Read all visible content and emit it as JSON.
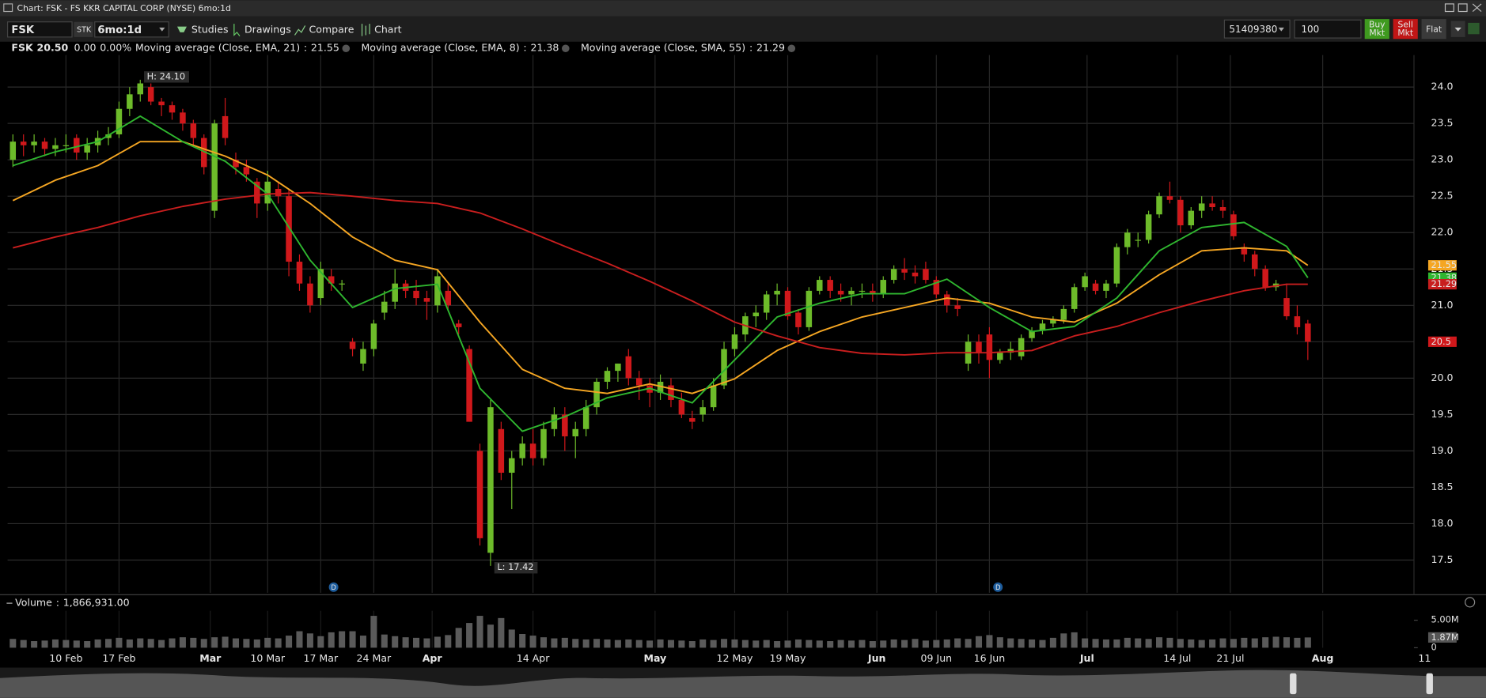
{
  "window": {
    "title": "Chart: FSK - FS KKR CAPITAL CORP (NYSE) 6mo:1d"
  },
  "toolbar": {
    "symbol": "FSK",
    "sec_type": "STK",
    "period": "6mo:1d",
    "studies": "Studies",
    "drawings": "Drawings",
    "compare": "Compare",
    "chart": "Chart",
    "account": "51409380",
    "quantity": "100",
    "buy": [
      "Buy",
      "Mkt"
    ],
    "sell": [
      "Sell",
      "Mkt"
    ],
    "flat": "Flat"
  },
  "quote": {
    "symbol": "FSK",
    "last": "20.50",
    "change": "0.00",
    "change_pct": "0.00%"
  },
  "chart_data": {
    "type": "candlestick",
    "up_color": "#6dbb2a",
    "down_color": "#d0181b",
    "ohlc": [
      [
        23.0,
        23.35,
        22.9,
        23.25
      ],
      [
        23.25,
        23.35,
        23.05,
        23.2
      ],
      [
        23.2,
        23.35,
        23.1,
        23.25
      ],
      [
        23.25,
        23.3,
        23.05,
        23.15
      ],
      [
        23.15,
        23.3,
        23.05,
        23.2
      ],
      [
        23.2,
        23.35,
        23.1,
        23.2
      ],
      [
        23.3,
        23.35,
        23.0,
        23.1
      ],
      [
        23.1,
        23.3,
        23.0,
        23.2
      ],
      [
        23.2,
        23.4,
        23.1,
        23.3
      ],
      [
        23.3,
        23.45,
        23.2,
        23.35
      ],
      [
        23.35,
        23.8,
        23.3,
        23.7
      ],
      [
        23.7,
        24.0,
        23.6,
        23.9
      ],
      [
        23.9,
        24.1,
        23.8,
        24.05
      ],
      [
        24.0,
        24.05,
        23.75,
        23.8
      ],
      [
        23.8,
        23.85,
        23.6,
        23.75
      ],
      [
        23.75,
        23.8,
        23.55,
        23.65
      ],
      [
        23.65,
        23.7,
        23.4,
        23.5
      ],
      [
        23.5,
        23.55,
        23.2,
        23.3
      ],
      [
        23.3,
        23.35,
        22.8,
        22.9
      ],
      [
        22.3,
        23.55,
        22.2,
        23.5
      ],
      [
        23.6,
        23.85,
        23.2,
        23.3
      ],
      [
        23.0,
        23.1,
        22.8,
        22.9
      ],
      [
        22.9,
        23.0,
        22.7,
        22.8
      ],
      [
        22.7,
        22.75,
        22.2,
        22.4
      ],
      [
        22.4,
        22.85,
        22.3,
        22.7
      ],
      [
        22.6,
        22.7,
        22.4,
        22.5
      ],
      [
        22.5,
        22.6,
        21.4,
        21.6
      ],
      [
        21.6,
        21.7,
        21.2,
        21.3
      ],
      [
        21.3,
        21.4,
        20.9,
        21.0
      ],
      [
        21.1,
        21.6,
        21.0,
        21.5
      ],
      [
        21.4,
        21.5,
        21.2,
        21.3
      ],
      [
        21.3,
        21.35,
        21.2,
        21.3
      ],
      [
        20.5,
        20.55,
        20.3,
        20.4
      ],
      [
        20.2,
        20.5,
        20.1,
        20.4
      ],
      [
        20.4,
        20.8,
        20.3,
        20.75
      ],
      [
        20.9,
        21.2,
        20.8,
        21.05
      ],
      [
        21.05,
        21.5,
        20.95,
        21.3
      ],
      [
        21.3,
        21.35,
        21.1,
        21.2
      ],
      [
        21.2,
        21.35,
        21.0,
        21.1
      ],
      [
        21.1,
        21.2,
        20.8,
        21.05
      ],
      [
        21.0,
        21.5,
        20.9,
        21.4
      ],
      [
        21.2,
        21.3,
        20.95,
        21.0
      ],
      [
        20.75,
        20.8,
        20.6,
        20.7
      ],
      [
        20.4,
        20.45,
        19.4,
        19.4
      ],
      [
        19.0,
        19.1,
        17.7,
        17.8
      ],
      [
        17.6,
        19.7,
        17.42,
        19.6
      ],
      [
        19.3,
        19.4,
        18.6,
        18.7
      ],
      [
        18.7,
        19.0,
        18.2,
        18.9
      ],
      [
        18.9,
        19.2,
        18.8,
        19.1
      ],
      [
        19.1,
        19.3,
        18.8,
        18.9
      ],
      [
        18.9,
        19.4,
        18.8,
        19.3
      ],
      [
        19.3,
        19.6,
        19.2,
        19.5
      ],
      [
        19.5,
        19.6,
        19.0,
        19.2
      ],
      [
        19.2,
        19.4,
        18.9,
        19.3
      ],
      [
        19.3,
        19.7,
        19.2,
        19.6
      ],
      [
        19.6,
        20.0,
        19.5,
        19.95
      ],
      [
        19.95,
        20.15,
        19.85,
        20.1
      ],
      [
        20.1,
        20.2,
        19.95,
        20.2
      ],
      [
        20.3,
        20.4,
        19.9,
        20.0
      ],
      [
        20.0,
        20.1,
        19.7,
        19.9
      ],
      [
        19.9,
        20.0,
        19.6,
        19.8
      ],
      [
        19.8,
        20.05,
        19.7,
        19.95
      ],
      [
        19.9,
        20.0,
        19.6,
        19.7
      ],
      [
        19.7,
        19.8,
        19.45,
        19.5
      ],
      [
        19.45,
        19.55,
        19.3,
        19.4
      ],
      [
        19.5,
        19.7,
        19.4,
        19.6
      ],
      [
        19.6,
        20.0,
        19.55,
        19.9
      ],
      [
        19.9,
        20.5,
        19.85,
        20.4
      ],
      [
        20.4,
        20.7,
        20.3,
        20.6
      ],
      [
        20.6,
        20.9,
        20.5,
        20.85
      ],
      [
        20.85,
        21.0,
        20.7,
        20.9
      ],
      [
        20.9,
        21.2,
        20.8,
        21.15
      ],
      [
        21.15,
        21.3,
        21.0,
        21.2
      ],
      [
        21.2,
        21.25,
        20.8,
        20.85
      ],
      [
        20.9,
        20.95,
        20.6,
        20.7
      ],
      [
        20.7,
        21.25,
        20.65,
        21.2
      ],
      [
        21.2,
        21.4,
        21.15,
        21.35
      ],
      [
        21.35,
        21.4,
        21.1,
        21.2
      ],
      [
        21.2,
        21.3,
        21.05,
        21.15
      ],
      [
        21.15,
        21.25,
        21.0,
        21.2
      ],
      [
        21.2,
        21.3,
        21.1,
        21.2
      ],
      [
        21.2,
        21.3,
        21.05,
        21.15
      ],
      [
        21.15,
        21.4,
        21.1,
        21.35
      ],
      [
        21.35,
        21.55,
        21.3,
        21.5
      ],
      [
        21.5,
        21.65,
        21.35,
        21.45
      ],
      [
        21.45,
        21.55,
        21.3,
        21.4
      ],
      [
        21.5,
        21.6,
        21.3,
        21.35
      ],
      [
        21.35,
        21.4,
        21.1,
        21.15
      ],
      [
        21.15,
        21.2,
        20.9,
        21.0
      ],
      [
        21.0,
        21.1,
        20.85,
        20.95
      ],
      [
        20.2,
        20.6,
        20.1,
        20.5
      ],
      [
        20.5,
        20.6,
        20.2,
        20.35
      ],
      [
        20.6,
        20.7,
        20.0,
        20.25
      ],
      [
        20.25,
        20.4,
        20.2,
        20.35
      ],
      [
        20.35,
        20.5,
        20.25,
        20.4
      ],
      [
        20.3,
        20.6,
        20.25,
        20.55
      ],
      [
        20.55,
        20.7,
        20.5,
        20.65
      ],
      [
        20.65,
        20.8,
        20.6,
        20.75
      ],
      [
        20.75,
        20.85,
        20.7,
        20.8
      ],
      [
        20.8,
        21.0,
        20.75,
        20.95
      ],
      [
        20.95,
        21.3,
        20.9,
        21.25
      ],
      [
        21.25,
        21.45,
        21.2,
        21.4
      ],
      [
        21.3,
        21.35,
        21.15,
        21.2
      ],
      [
        21.2,
        21.35,
        21.1,
        21.3
      ],
      [
        21.3,
        21.85,
        21.25,
        21.8
      ],
      [
        21.8,
        22.05,
        21.7,
        22.0
      ],
      [
        21.9,
        22.0,
        21.8,
        21.9
      ],
      [
        21.9,
        22.3,
        21.85,
        22.25
      ],
      [
        22.25,
        22.55,
        22.2,
        22.5
      ],
      [
        22.5,
        22.7,
        22.4,
        22.45
      ],
      [
        22.45,
        22.5,
        22.0,
        22.1
      ],
      [
        22.1,
        22.35,
        22.05,
        22.3
      ],
      [
        22.3,
        22.5,
        22.2,
        22.4
      ],
      [
        22.4,
        22.5,
        22.3,
        22.35
      ],
      [
        22.35,
        22.45,
        22.2,
        22.3
      ],
      [
        22.25,
        22.3,
        21.9,
        21.95
      ],
      [
        21.8,
        21.85,
        21.6,
        21.7
      ],
      [
        21.7,
        21.75,
        21.4,
        21.5
      ],
      [
        21.5,
        21.55,
        21.2,
        21.25
      ],
      [
        21.25,
        21.35,
        21.2,
        21.3
      ],
      [
        21.1,
        21.3,
        20.8,
        20.85
      ],
      [
        20.85,
        21.0,
        20.6,
        20.7
      ],
      [
        20.75,
        20.8,
        20.25,
        20.5
      ]
    ],
    "last_price": 20.5,
    "annotations": [
      "H: 24.10",
      "L: 17.42"
    ],
    "events": [
      "D",
      "D"
    ],
    "legend_separator": ":",
    "series": [
      {
        "name": "Moving average (Close, EMA, 21)",
        "color": "#f5a623",
        "axis_label": 21.55,
        "x": [
          0,
          4,
          8,
          12,
          16,
          20,
          24,
          28,
          32,
          36,
          40,
          44,
          48,
          52,
          56,
          60,
          64,
          68,
          72,
          76,
          80,
          84,
          88,
          92,
          96,
          100,
          104,
          108,
          112,
          116,
          120,
          122
        ],
        "values": [
          22.44,
          22.72,
          22.92,
          23.25,
          23.25,
          23.05,
          22.79,
          22.4,
          21.94,
          21.62,
          21.49,
          20.77,
          20.12,
          19.86,
          19.79,
          19.92,
          19.79,
          19.99,
          20.38,
          20.64,
          20.84,
          20.97,
          21.1,
          21.03,
          20.84,
          20.77,
          21.03,
          21.42,
          21.75,
          21.79,
          21.75,
          21.55
        ]
      },
      {
        "name": "Moving average (Close, EMA, 8)",
        "color": "#2fb62f",
        "axis_label": 21.38,
        "x": [
          0,
          4,
          8,
          12,
          16,
          20,
          24,
          28,
          32,
          36,
          40,
          44,
          48,
          52,
          56,
          60,
          64,
          68,
          72,
          76,
          80,
          84,
          88,
          92,
          96,
          100,
          104,
          108,
          112,
          116,
          120,
          122
        ],
        "values": [
          22.92,
          23.11,
          23.25,
          23.6,
          23.25,
          22.98,
          22.53,
          21.62,
          20.97,
          21.23,
          21.29,
          19.86,
          19.27,
          19.47,
          19.73,
          19.86,
          19.66,
          20.25,
          20.84,
          21.03,
          21.16,
          21.16,
          21.36,
          20.97,
          20.64,
          20.71,
          21.1,
          21.75,
          22.07,
          22.14,
          21.81,
          21.38
        ]
      },
      {
        "name": "Moving average (Close, SMA, 55)",
        "color": "#c81e1e",
        "axis_label": 21.29,
        "x": [
          0,
          4,
          8,
          12,
          16,
          20,
          24,
          28,
          32,
          36,
          40,
          44,
          48,
          52,
          56,
          60,
          64,
          68,
          72,
          76,
          80,
          84,
          88,
          92,
          96,
          100,
          104,
          108,
          112,
          116,
          120,
          122
        ],
        "values": [
          21.79,
          21.94,
          22.07,
          22.23,
          22.36,
          22.46,
          22.53,
          22.55,
          22.5,
          22.44,
          22.4,
          22.27,
          22.05,
          21.81,
          21.58,
          21.33,
          21.06,
          20.77,
          20.58,
          20.42,
          20.34,
          20.32,
          20.35,
          20.35,
          20.38,
          20.58,
          20.71,
          20.9,
          21.06,
          21.2,
          21.29,
          21.29
        ]
      }
    ],
    "xlim": [
      -0.5,
      132
    ],
    "xticks": [
      {
        "value": 5,
        "label": "10 Feb"
      },
      {
        "value": 10,
        "label": "17 Feb"
      },
      {
        "value": 18.6,
        "label": "Mar"
      },
      {
        "value": 24,
        "label": "10 Mar"
      },
      {
        "value": 29,
        "label": "17 Mar"
      },
      {
        "value": 34,
        "label": "24 Mar"
      },
      {
        "value": 39.5,
        "label": "Apr"
      },
      {
        "value": 49,
        "label": "14 Apr"
      },
      {
        "value": 60.5,
        "label": "May"
      },
      {
        "value": 68,
        "label": "12 May"
      },
      {
        "value": 73,
        "label": "19 May"
      },
      {
        "value": 81.4,
        "label": "Jun"
      },
      {
        "value": 87,
        "label": "09 Jun"
      },
      {
        "value": 92,
        "label": "16 Jun"
      },
      {
        "value": 101.2,
        "label": "Jul"
      },
      {
        "value": 109.7,
        "label": "14 Jul"
      },
      {
        "value": 114.7,
        "label": "21 Jul"
      },
      {
        "value": 123.4,
        "label": "Aug"
      },
      {
        "value": 133,
        "label": "11"
      }
    ],
    "ylim": [
      17.05,
      24.44
    ],
    "yticks": [
      {
        "value": 17.5,
        "label": "17.5"
      },
      {
        "value": 18,
        "label": "18.0"
      },
      {
        "value": 18.5,
        "label": "18.5"
      },
      {
        "value": 19,
        "label": "19.0"
      },
      {
        "value": 19.5,
        "label": "19.5"
      },
      {
        "value": 20,
        "label": "20.0"
      },
      {
        "value": 20.5,
        "label": "20.5"
      },
      {
        "value": 21,
        "label": "21.0"
      },
      {
        "value": 21.5,
        "label": "21.5"
      },
      {
        "value": 22,
        "label": "22.0"
      },
      {
        "value": 22.5,
        "label": "22.5"
      },
      {
        "value": 23,
        "label": "23.0"
      },
      {
        "value": 23.5,
        "label": "23.5"
      },
      {
        "value": 24,
        "label": "24.0"
      }
    ],
    "grid": true,
    "volume": {
      "label": "Volume",
      "separator": ":",
      "current": "1,866,931.00",
      "color": "#5a5a5a",
      "ylim": [
        0,
        6.72
      ],
      "yticks": [
        0,
        {
          "value": 5,
          "label": "5.00M"
        }
      ],
      "last": {
        "value": 1.87,
        "label": "1.87M"
      },
      "values": [
        1.6,
        1.4,
        1.2,
        1.3,
        1.5,
        1.4,
        1.3,
        1.2,
        1.5,
        1.6,
        1.8,
        1.5,
        1.7,
        1.6,
        1.4,
        1.7,
        1.9,
        1.8,
        1.6,
        1.9,
        2.0,
        1.7,
        1.6,
        1.5,
        1.8,
        1.7,
        2.2,
        3.0,
        2.6,
        2.1,
        2.8,
        3.0,
        3.0,
        2.2,
        5.8,
        2.4,
        2.1,
        1.9,
        1.8,
        1.7,
        2.0,
        2.3,
        3.6,
        4.5,
        5.8,
        4.2,
        5.4,
        3.3,
        2.5,
        2.2,
        1.9,
        1.7,
        1.8,
        1.6,
        1.5,
        1.6,
        1.5,
        1.4,
        1.5,
        1.4,
        1.3,
        1.5,
        1.4,
        1.3,
        1.2,
        1.5,
        1.4,
        1.6,
        1.5,
        1.4,
        1.3,
        1.4,
        1.2,
        1.3,
        1.5,
        1.4,
        1.3,
        1.2,
        1.4,
        1.3,
        1.4,
        1.2,
        1.3,
        1.5,
        1.4,
        1.6,
        1.3,
        1.4,
        1.5,
        1.7,
        1.6,
        2.1,
        2.3,
        1.9,
        1.7,
        1.6,
        1.5,
        1.4,
        1.8,
        2.6,
        2.8,
        1.7,
        1.6,
        1.5,
        1.5,
        1.8,
        1.7,
        1.6,
        1.9,
        1.8,
        1.6,
        1.5,
        1.4,
        1.5,
        1.7,
        1.6,
        1.8,
        1.7,
        1.9,
        2.0,
        1.9,
        1.8,
        1.87
      ]
    }
  }
}
